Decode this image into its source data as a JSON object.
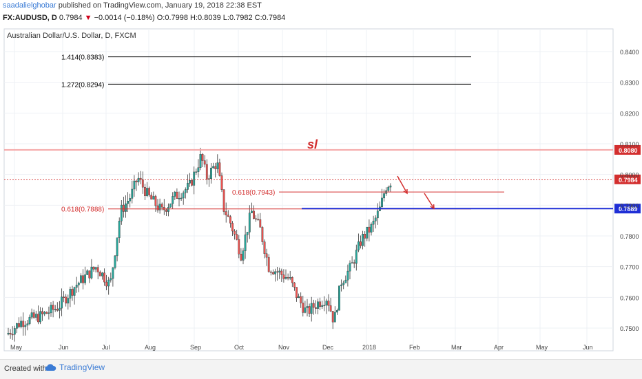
{
  "header": {
    "username": "saadalielghobar",
    "published": "published on TradingView.com, January 19, 2018 22:38 EST",
    "symbol": "FX:AUDUSD, D",
    "last": "0.7984",
    "change": "−0.0014 (−0.18%)",
    "open": "O:0.7998",
    "high": "H:0.8039",
    "low": "L:0.7982",
    "close": "C:0.7984",
    "down_arrow_color": "#d0021b"
  },
  "footer": {
    "created_with": "Created with",
    "brand": "TradingView",
    "logo_icon": "tradingview-cloud-icon"
  },
  "chart_data": {
    "type": "candlestick",
    "title": "Australian Dollar/U.S. Dollar, D, FXCM",
    "ylim": [
      0.7455,
      0.8475
    ],
    "y_ticks": [
      "0.7500",
      "0.7600",
      "0.7700",
      "0.7800",
      "0.7900",
      "0.8000",
      "0.8100",
      "0.8200",
      "0.8300",
      "0.8400"
    ],
    "x_ticks": [
      "May",
      "Jun",
      "Jul",
      "Aug",
      "Sep",
      "Oct",
      "Nov",
      "Dec",
      "2018",
      "Feb",
      "Mar",
      "Apr",
      "May",
      "Jun"
    ],
    "grid": true,
    "series_color_up": "#26a69a",
    "series_color_down": "#ef5350",
    "candle_count": 185,
    "approx_closes_by_month": {
      "May": 0.748,
      "Jun": 0.757,
      "Jul": 0.79,
      "Aug": 0.795,
      "Sep": 0.798,
      "Oct": 0.77,
      "Nov": 0.765,
      "Dec": 0.754,
      "2018": 0.783,
      "Jan_last": 0.7984
    },
    "fib_levels": [
      {
        "label": "1.414(0.8383)",
        "price": 0.8383,
        "color": "#000000"
      },
      {
        "label": "1.272(0.8294)",
        "price": 0.8294,
        "color": "#000000"
      },
      {
        "label": "0.618(0.7943)",
        "price": 0.7943,
        "color": "#d32f2f"
      },
      {
        "label": "0.618(0.7888)",
        "price": 0.7888,
        "color": "#d32f2f"
      }
    ],
    "annotations": [
      {
        "text": "sl",
        "color": "#d32f2f"
      }
    ],
    "horizontal_levels": [
      {
        "price": 0.808,
        "label": "0.8080",
        "color": "#f4a6a6",
        "badge_color": "#d32f2f"
      },
      {
        "price": 0.7984,
        "label": "0.7984",
        "color": "#d32f2f",
        "badge_color": "#d32f2f"
      },
      {
        "price": 0.7889,
        "label": "0.7889",
        "color": "#1f2fd6",
        "badge_color": "#1f2fd6"
      }
    ]
  }
}
